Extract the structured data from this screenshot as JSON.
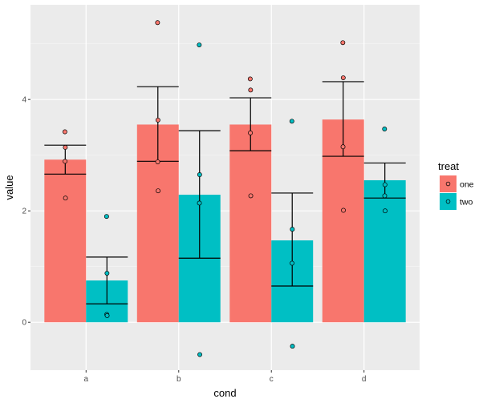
{
  "chart_data": {
    "type": "bar",
    "title": "",
    "xlabel": "cond",
    "ylabel": "value",
    "categories": [
      "a",
      "b",
      "c",
      "d"
    ],
    "ylim": [
      -0.86,
      5.7
    ],
    "yticks": [
      0,
      2,
      4
    ],
    "ytick_labels": [
      "0",
      "2",
      "4"
    ],
    "grid": true,
    "legend": {
      "title": "treat",
      "position": "right",
      "entries": [
        "one",
        "two"
      ]
    },
    "colors": {
      "one": "#F8766D",
      "two": "#00BFC4",
      "panel": "#EBEBEB",
      "grid": "#FFFFFF",
      "error": "#000000"
    },
    "series": [
      {
        "name": "one",
        "values": [
          2.92,
          3.55,
          3.55,
          3.64
        ],
        "error_low": [
          2.66,
          2.89,
          3.08,
          2.98
        ],
        "error_high": [
          3.18,
          4.23,
          4.03,
          4.32
        ],
        "points": [
          [
            3.42,
            3.14,
            2.89,
            2.23
          ],
          [
            5.38,
            3.63,
            2.88,
            2.36
          ],
          [
            4.37,
            4.17,
            3.4,
            2.27
          ],
          [
            5.02,
            4.39,
            3.15,
            2.01
          ]
        ]
      },
      {
        "name": "two",
        "values": [
          0.75,
          2.29,
          1.47,
          2.55
        ],
        "error_low": [
          0.33,
          1.15,
          0.65,
          2.23
        ],
        "error_high": [
          1.17,
          3.44,
          2.32,
          2.86
        ],
        "points": [
          [
            1.9,
            0.88,
            0.14,
            0.12
          ],
          [
            4.98,
            2.65,
            2.14,
            -0.58
          ],
          [
            3.61,
            1.67,
            1.06,
            -0.43
          ],
          [
            3.47,
            2.47,
            2.27,
            2.0
          ]
        ]
      }
    ]
  }
}
